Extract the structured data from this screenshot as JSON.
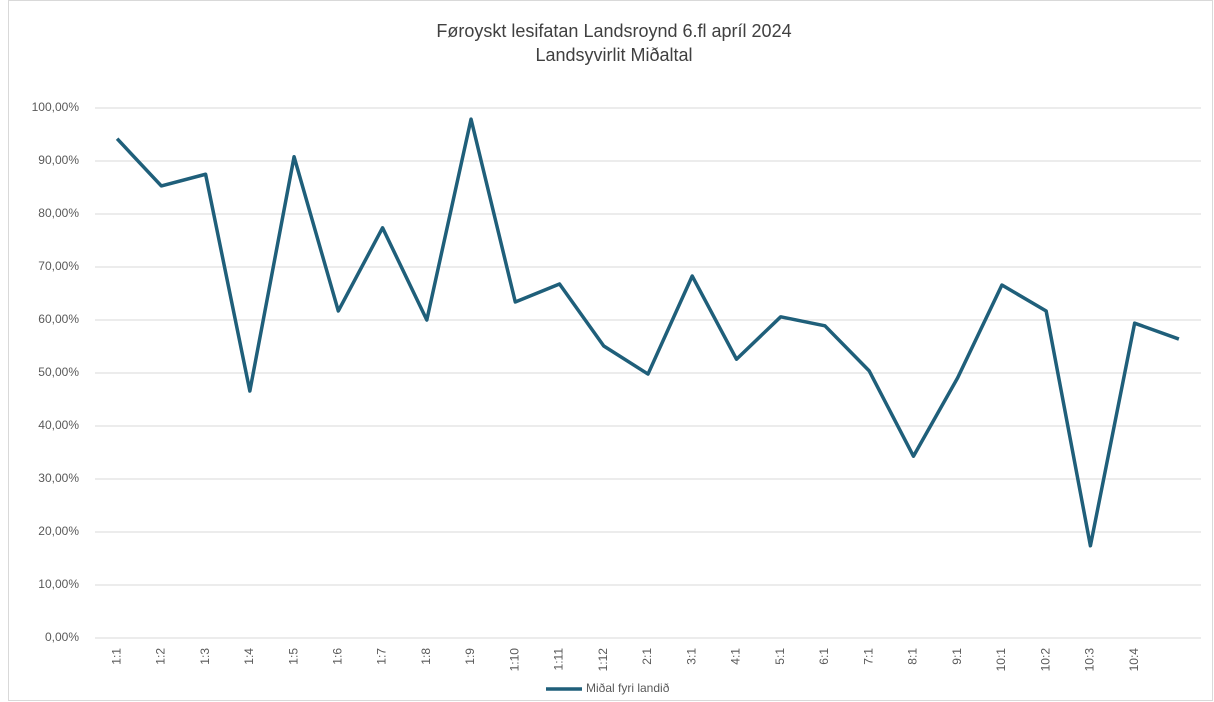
{
  "chart_data": {
    "type": "line",
    "title": "Føroyskt lesifatan Landsroynd 6.fl apríl 2024",
    "subtitle": "Landsyvirlit Miðaltal",
    "categories": [
      "1:1",
      "1:2",
      "1:3",
      "1:4",
      "1:5",
      "1:6",
      "1:7",
      "1:8",
      "1:9",
      "1:10",
      "1:11",
      "1:12",
      "2:1",
      "3:1",
      "4:1",
      "5:1",
      "6:1",
      "7:1",
      "8:1",
      "9:1",
      "10:1",
      "10:2",
      "10:3",
      "10:4",
      null
    ],
    "series": [
      {
        "name": "Miðal fyri landið",
        "color": "#1f5f7a",
        "values": [
          94.2,
          85.3,
          87.5,
          46.6,
          90.8,
          61.7,
          77.4,
          60.0,
          97.9,
          63.4,
          66.8,
          55.1,
          49.8,
          68.3,
          52.6,
          60.6,
          58.9,
          50.4,
          34.3,
          49.1,
          66.6,
          61.7,
          17.4,
          59.4,
          56.4
        ]
      }
    ],
    "ylim": [
      0,
      100
    ],
    "yticks": [
      {
        "value": 0,
        "label": "0,00%"
      },
      {
        "value": 10,
        "label": "10,00%"
      },
      {
        "value": 20,
        "label": "20,00%"
      },
      {
        "value": 30,
        "label": "30,00%"
      },
      {
        "value": 40,
        "label": "40,00%"
      },
      {
        "value": 50,
        "label": "50,00%"
      },
      {
        "value": 60,
        "label": "60,00%"
      },
      {
        "value": 70,
        "label": "70,00%"
      },
      {
        "value": 80,
        "label": "80,00%"
      },
      {
        "value": 90,
        "label": "90,00%"
      },
      {
        "value": 100,
        "label": "100,00%"
      }
    ],
    "grid": true,
    "legend": "bottom"
  }
}
